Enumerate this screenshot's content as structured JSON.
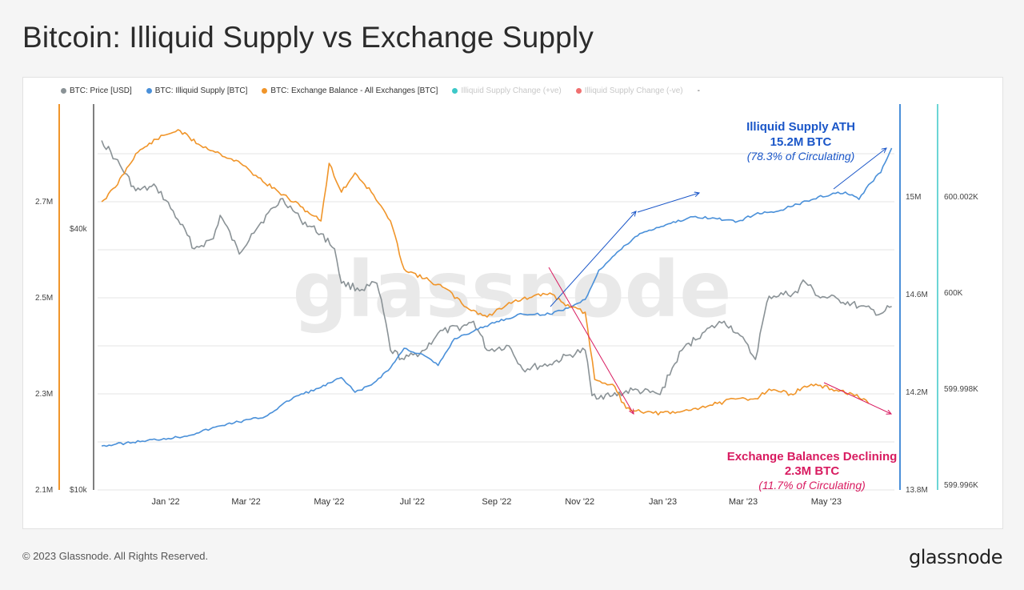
{
  "page": {
    "title": "Bitcoin: Illiquid Supply vs Exchange Supply",
    "copyright": "© 2023 Glassnode. All Rights Reserved.",
    "logo": "glassnode",
    "watermark": "glassnode"
  },
  "colors": {
    "price": "#8a9296",
    "illiquid": "#4a90d9",
    "exchange": "#f0952a",
    "change_pos": "#3cc8c8",
    "change_neg": "#f07070",
    "annotation_blue": "#1a56c8",
    "annotation_pink": "#d81b60"
  },
  "legend": [
    {
      "label": "BTC: Price [USD]",
      "color": "#8a9296",
      "faded": false
    },
    {
      "label": "BTC: Illiquid Supply [BTC]",
      "color": "#4a90d9",
      "faded": false
    },
    {
      "label": "BTC: Exchange Balance - All Exchanges [BTC]",
      "color": "#f0952a",
      "faded": false
    },
    {
      "label": "Illiquid Supply Change (+ve)",
      "color": "#3cc8c8",
      "faded": true
    },
    {
      "label": "Illiquid Supply Change (-ve)",
      "color": "#f07070",
      "faded": true
    }
  ],
  "legend_extra": "-",
  "annotations": {
    "illiquid": {
      "line1": "Illiquid Supply ATH",
      "line2": "15.2M BTC",
      "line3": "(78.3% of Circulating)"
    },
    "exchange": {
      "line1": "Exchange Balances Declining",
      "line2": "2.3M BTC",
      "line3": "(11.7% of Circulating)"
    }
  },
  "chart_data": {
    "type": "line",
    "x_ticks": [
      "Jan '22",
      "Mar '22",
      "May '22",
      "Jul '22",
      "Sep '22",
      "Nov '22",
      "Jan '23",
      "Mar '23",
      "May '23"
    ],
    "axes": {
      "exchange_axis": {
        "ticks": [
          "2.1M",
          "2.3M",
          "2.5M",
          "2.7M"
        ],
        "range": [
          2.1,
          2.9
        ],
        "unit": "M BTC"
      },
      "price_axis": {
        "ticks": [
          "$10k",
          "$40k"
        ],
        "scale": "log"
      },
      "illiquid_axis": {
        "ticks": [
          "13.8M",
          "14.2M",
          "14.6M",
          "15M"
        ],
        "range": [
          13.8,
          15.2
        ],
        "unit": "M BTC"
      },
      "change_axis": {
        "ticks": [
          "599.996K",
          "599.998K",
          "600K",
          "600.002K"
        ]
      }
    },
    "grid": true,
    "legend_position": "top-left",
    "series": [
      {
        "name": "BTC: Exchange Balance - All Exchanges [BTC]",
        "axis": "exchange_axis",
        "points": [
          [
            "2021-11-15",
            2.7
          ],
          [
            "2021-11-25",
            2.73
          ],
          [
            "2021-12-10",
            2.8
          ],
          [
            "2021-12-25",
            2.83
          ],
          [
            "2022-01-10",
            2.85
          ],
          [
            "2022-01-25",
            2.82
          ],
          [
            "2022-02-10",
            2.8
          ],
          [
            "2022-02-25",
            2.78
          ],
          [
            "2022-03-10",
            2.75
          ],
          [
            "2022-03-25",
            2.72
          ],
          [
            "2022-04-10",
            2.69
          ],
          [
            "2022-04-25",
            2.66
          ],
          [
            "2022-05-01",
            2.78
          ],
          [
            "2022-05-10",
            2.72
          ],
          [
            "2022-05-20",
            2.76
          ],
          [
            "2022-06-01",
            2.72
          ],
          [
            "2022-06-15",
            2.66
          ],
          [
            "2022-06-25",
            2.56
          ],
          [
            "2022-07-10",
            2.54
          ],
          [
            "2022-07-25",
            2.52
          ],
          [
            "2022-08-10",
            2.48
          ],
          [
            "2022-08-25",
            2.46
          ],
          [
            "2022-09-10",
            2.49
          ],
          [
            "2022-09-25",
            2.5
          ],
          [
            "2022-10-10",
            2.51
          ],
          [
            "2022-10-25",
            2.48
          ],
          [
            "2022-11-05",
            2.47
          ],
          [
            "2022-11-12",
            2.33
          ],
          [
            "2022-11-25",
            2.32
          ],
          [
            "2022-12-05",
            2.27
          ],
          [
            "2022-12-25",
            2.26
          ],
          [
            "2023-01-10",
            2.26
          ],
          [
            "2023-01-25",
            2.27
          ],
          [
            "2023-02-10",
            2.28
          ],
          [
            "2023-02-25",
            2.29
          ],
          [
            "2023-03-10",
            2.29
          ],
          [
            "2023-03-20",
            2.31
          ],
          [
            "2023-04-05",
            2.3
          ],
          [
            "2023-04-20",
            2.32
          ],
          [
            "2023-05-05",
            2.31
          ],
          [
            "2023-05-20",
            2.3
          ],
          [
            "2023-06-01",
            2.28
          ]
        ]
      },
      {
        "name": "BTC: Illiquid Supply [BTC]",
        "axis": "illiquid_axis",
        "points": [
          [
            "2021-11-15",
            13.98
          ],
          [
            "2021-12-15",
            14.0
          ],
          [
            "2022-01-15",
            14.02
          ],
          [
            "2022-02-15",
            14.07
          ],
          [
            "2022-03-15",
            14.1
          ],
          [
            "2022-04-05",
            14.18
          ],
          [
            "2022-04-25",
            14.22
          ],
          [
            "2022-05-10",
            14.26
          ],
          [
            "2022-05-20",
            14.2
          ],
          [
            "2022-06-01",
            14.23
          ],
          [
            "2022-06-15",
            14.3
          ],
          [
            "2022-06-25",
            14.38
          ],
          [
            "2022-07-10",
            14.35
          ],
          [
            "2022-07-20",
            14.31
          ],
          [
            "2022-08-01",
            14.42
          ],
          [
            "2022-08-15",
            14.45
          ],
          [
            "2022-09-01",
            14.49
          ],
          [
            "2022-09-20",
            14.52
          ],
          [
            "2022-10-10",
            14.52
          ],
          [
            "2022-10-25",
            14.55
          ],
          [
            "2022-11-05",
            14.58
          ],
          [
            "2022-11-15",
            14.7
          ],
          [
            "2022-11-30",
            14.78
          ],
          [
            "2022-12-15",
            14.85
          ],
          [
            "2023-01-05",
            14.89
          ],
          [
            "2023-01-25",
            14.92
          ],
          [
            "2023-02-10",
            14.91
          ],
          [
            "2023-02-25",
            14.9
          ],
          [
            "2023-03-10",
            14.93
          ],
          [
            "2023-03-25",
            14.94
          ],
          [
            "2023-04-10",
            14.97
          ],
          [
            "2023-04-25",
            15.0
          ],
          [
            "2023-05-15",
            15.02
          ],
          [
            "2023-05-25",
            14.99
          ],
          [
            "2023-06-01",
            15.05
          ],
          [
            "2023-06-10",
            15.1
          ],
          [
            "2023-06-18",
            15.2
          ]
        ]
      },
      {
        "name": "BTC: Price [USD]",
        "axis": "price_axis",
        "points": [
          [
            "2021-11-15",
            64000
          ],
          [
            "2021-11-25",
            58000
          ],
          [
            "2021-12-10",
            49000
          ],
          [
            "2021-12-25",
            50000
          ],
          [
            "2022-01-10",
            42000
          ],
          [
            "2022-01-22",
            36000
          ],
          [
            "2022-02-05",
            38000
          ],
          [
            "2022-02-10",
            43000
          ],
          [
            "2022-02-24",
            35000
          ],
          [
            "2022-03-05",
            39000
          ],
          [
            "2022-03-28",
            47000
          ],
          [
            "2022-04-10",
            42000
          ],
          [
            "2022-04-25",
            39000
          ],
          [
            "2022-05-05",
            36000
          ],
          [
            "2022-05-10",
            30000
          ],
          [
            "2022-05-25",
            29000
          ],
          [
            "2022-06-05",
            30000
          ],
          [
            "2022-06-15",
            21000
          ],
          [
            "2022-06-25",
            20000
          ],
          [
            "2022-07-10",
            21000
          ],
          [
            "2022-07-20",
            23000
          ],
          [
            "2022-08-10",
            24000
          ],
          [
            "2022-08-15",
            24500
          ],
          [
            "2022-08-25",
            21000
          ],
          [
            "2022-09-10",
            21500
          ],
          [
            "2022-09-20",
            19000
          ],
          [
            "2022-10-10",
            19500
          ],
          [
            "2022-10-25",
            20500
          ],
          [
            "2022-11-05",
            21000
          ],
          [
            "2022-11-10",
            16500
          ],
          [
            "2022-11-25",
            16500
          ],
          [
            "2022-12-10",
            17000
          ],
          [
            "2022-12-30",
            16600
          ],
          [
            "2023-01-15",
            21000
          ],
          [
            "2023-01-30",
            23000
          ],
          [
            "2023-02-15",
            24500
          ],
          [
            "2023-02-25",
            23000
          ],
          [
            "2023-03-10",
            20000
          ],
          [
            "2023-03-20",
            28000
          ],
          [
            "2023-04-10",
            28500
          ],
          [
            "2023-04-14",
            30500
          ],
          [
            "2023-04-25",
            28000
          ],
          [
            "2023-05-10",
            27500
          ],
          [
            "2023-05-25",
            26500
          ],
          [
            "2023-06-10",
            25500
          ],
          [
            "2023-06-18",
            26500
          ]
        ]
      }
    ]
  }
}
